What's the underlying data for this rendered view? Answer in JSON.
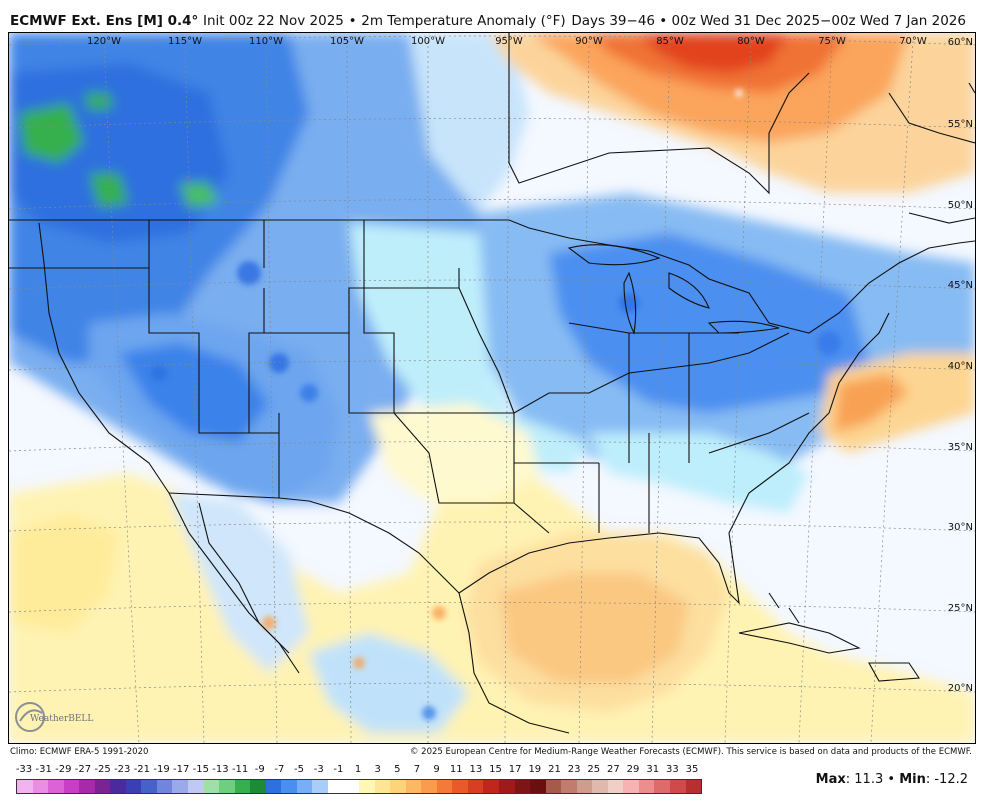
{
  "header": {
    "model": "ECMWF Ext. Ens [M] 0.4°",
    "init": "Init 00z 22 Nov 2025",
    "separator": "•",
    "field": "2m Temperature Anomaly (°F)",
    "valid": "Days 39−46 • 00z Wed 31 Dec 2025−00z Wed 7 Jan 2026"
  },
  "map": {
    "longitude_labels": [
      "120°W",
      "115°W",
      "110°W",
      "105°W",
      "100°W",
      "95°W",
      "90°W",
      "85°W",
      "80°W",
      "75°W",
      "70°W"
    ],
    "latitude_labels": [
      "60°N",
      "55°N",
      "50°N",
      "45°N",
      "40°N",
      "35°N",
      "30°N",
      "25°N",
      "20°N"
    ],
    "logo_text": "WeatherBELL"
  },
  "footer": {
    "climo": "Climo: ECMWF ERA-5 1991-2020",
    "copyright": "© 2025 European Centre for Medium-Range Weather Forecasts (ECMWF). This service is based on data and products of the ECMWF."
  },
  "colorbar": {
    "ticks": [
      "-33",
      "-31",
      "-29",
      "-27",
      "-25",
      "-23",
      "-21",
      "-19",
      "-17",
      "-15",
      "-13",
      "-11",
      "-9",
      "-7",
      "-5",
      "-3",
      "-1",
      "1",
      "3",
      "5",
      "7",
      "9",
      "11",
      "13",
      "15",
      "17",
      "19",
      "21",
      "23",
      "25",
      "27",
      "29",
      "31",
      "33",
      "35"
    ],
    "colors": [
      "#f3b3f0",
      "#e98ee4",
      "#dc63d6",
      "#c93ec4",
      "#a82aa8",
      "#7b2392",
      "#4b2a9e",
      "#3a3fb5",
      "#4661c8",
      "#6f86dc",
      "#9aa9ea",
      "#c0c9f4",
      "#9fe0a8",
      "#6fcf7f",
      "#36b04f",
      "#1d8a36",
      "#2f6fe0",
      "#4a8ef0",
      "#78aef5",
      "#a7cdf8",
      "#ffffff",
      "#ffffff",
      "#fff7b6",
      "#ffe596",
      "#ffd37a",
      "#fdb864",
      "#fa9c4c",
      "#f37a38",
      "#e85a2a",
      "#d83e22",
      "#c0271c",
      "#a01a19",
      "#7f1415",
      "#6a0f10",
      "#a55a4a",
      "#c07c6c",
      "#d09c8e",
      "#e0b9ac",
      "#efcfc6",
      "#f7b3b3",
      "#ec8e8e",
      "#df6a6a",
      "#cf4a4a",
      "#b82f2f"
    ]
  },
  "stats": {
    "max_label": "Max",
    "max_value": "11.3",
    "sep": "•",
    "min_label": "Min",
    "min_value": "-12.2"
  }
}
